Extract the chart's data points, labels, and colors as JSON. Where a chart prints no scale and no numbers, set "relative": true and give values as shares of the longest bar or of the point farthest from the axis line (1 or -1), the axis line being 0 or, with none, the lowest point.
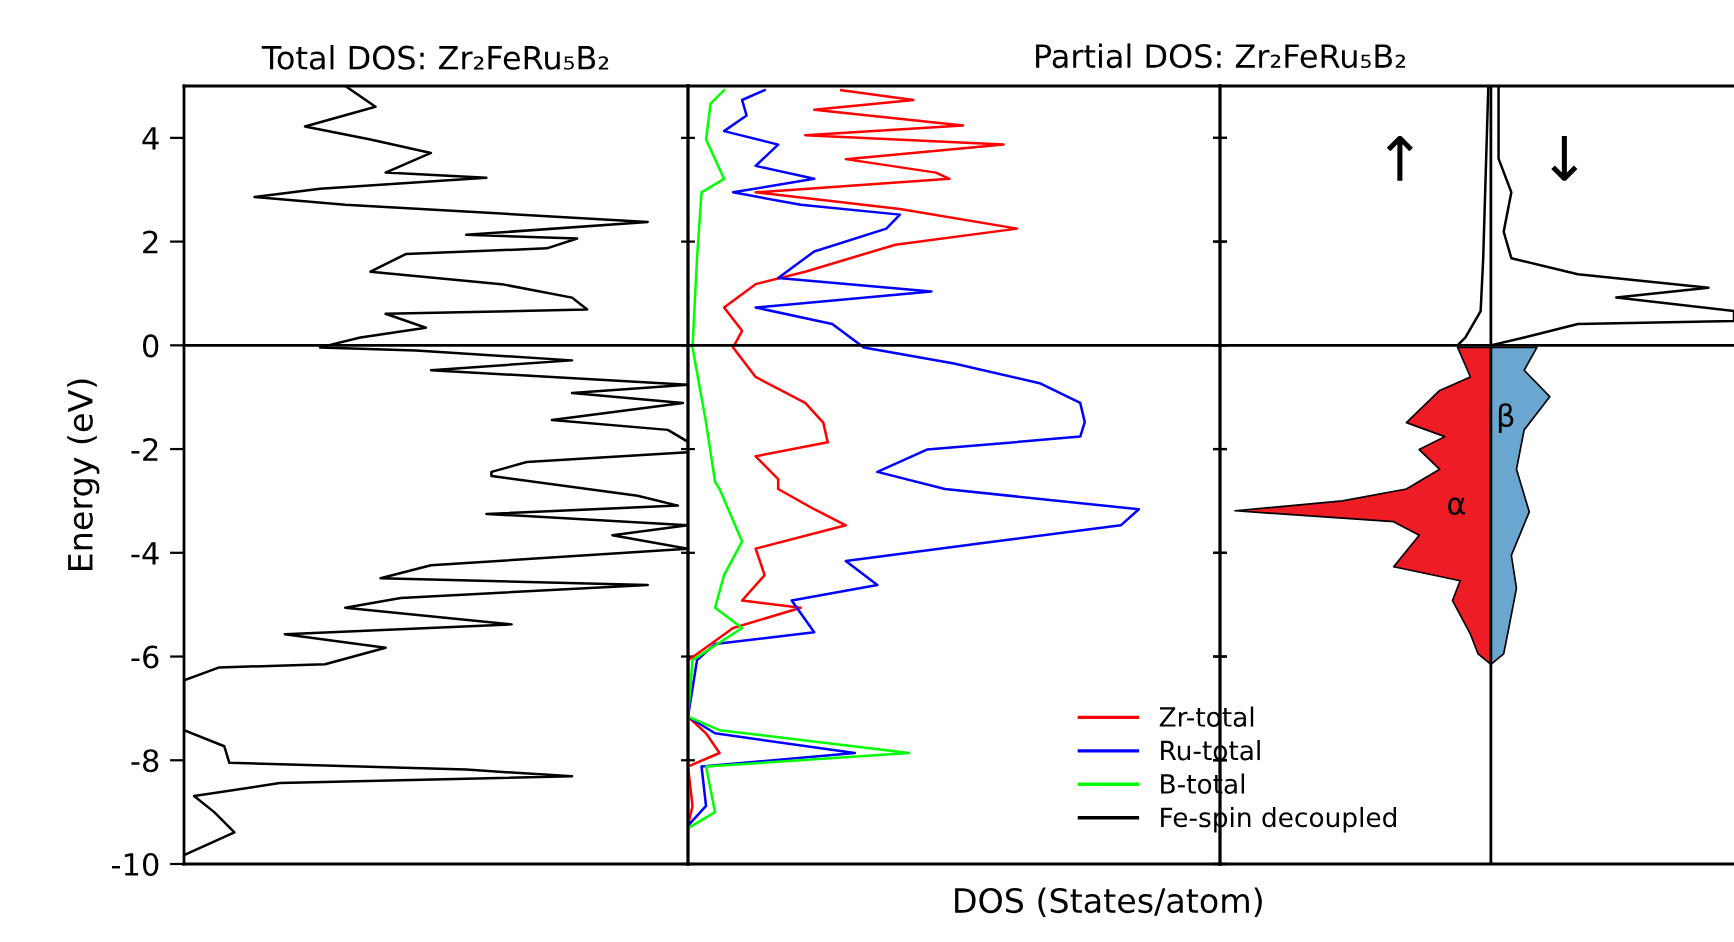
{
  "chart_data": [
    {
      "type": "line",
      "title": "Total DOS: Zr₂FeRu₅B₂",
      "ylabel": "Energy (eV)",
      "orientation": "horizontal",
      "relative": true,
      "ylim": [
        -10,
        5
      ],
      "yticks": [
        -10,
        -8,
        -6,
        -4,
        -2,
        0,
        2,
        4
      ],
      "tick_labels": "y",
      "grid": false,
      "legend": false,
      "ref_lines": [
        {
          "axis": "y",
          "value": 0,
          "color": "#000000"
        }
      ],
      "series": [
        {
          "color": "#000000",
          "x": [
            5.0,
            4.6,
            4.22,
            3.97,
            3.71,
            3.33,
            3.23,
            3.02,
            2.86,
            2.71,
            2.38,
            2.13,
            2.06,
            1.87,
            1.76,
            1.42,
            1.18,
            0.92,
            0.69,
            0.61,
            0.34,
            0.15,
            -0.04,
            -0.1,
            -0.29,
            -0.48,
            -0.76,
            -0.92,
            -1.11,
            -1.44,
            -1.63,
            -1.86,
            -2.06,
            -2.25,
            -2.44,
            -2.52,
            -2.9,
            -3.09,
            -3.25,
            -3.47,
            -3.66,
            -3.92,
            -4.24,
            -4.49,
            -4.62,
            -4.87,
            -5.06,
            -5.38,
            -5.57,
            -5.83,
            -6.15,
            -6.21,
            -6.46,
            -7.42,
            -7.73,
            -8.05,
            -8.18,
            -8.31,
            -8.44,
            -8.69,
            -9.0,
            -9.39,
            -9.83
          ],
          "values": [
            0.32,
            0.38,
            0.24,
            0.37,
            0.49,
            0.4,
            0.6,
            0.27,
            0.14,
            0.32,
            0.92,
            0.56,
            0.78,
            0.72,
            0.44,
            0.37,
            0.63,
            0.77,
            0.8,
            0.4,
            0.48,
            0.35,
            0.27,
            0.46,
            0.77,
            0.49,
            1.0,
            0.77,
            0.99,
            0.73,
            0.96,
            1.0,
            1.0,
            0.68,
            0.61,
            0.61,
            0.9,
            0.98,
            0.6,
            1.0,
            0.85,
            1.0,
            0.49,
            0.39,
            0.92,
            0.43,
            0.32,
            0.65,
            0.2,
            0.4,
            0.28,
            0.07,
            0,
            0,
            0.08,
            0.09,
            0.56,
            0.77,
            0.19,
            0.02,
            0.06,
            0.1,
            0
          ]
        }
      ]
    },
    {
      "type": "line",
      "title": "Partial DOS: Zr₂FeRu₅B₂",
      "xlabel": "DOS (States/atom)",
      "orientation": "horizontal",
      "relative": true,
      "ylim": [
        -10,
        5
      ],
      "yticks": [
        -10,
        -8,
        -6,
        -4,
        -2,
        0,
        2,
        4
      ],
      "tick_labels": false,
      "grid": false,
      "legend": "bottom right",
      "ref_lines": [
        {
          "axis": "y",
          "value": 0,
          "color": "#000000"
        }
      ],
      "series": [
        {
          "name": "Zr-total",
          "color": "#ff0000",
          "x": [
            4.92,
            4.73,
            4.54,
            4.24,
            4.05,
            3.87,
            3.59,
            3.33,
            3.21,
            2.95,
            2.63,
            2.25,
            1.94,
            1.42,
            1.18,
            0.73,
            0.28,
            -0.04,
            -0.61,
            -1.11,
            -1.49,
            -1.87,
            -2.14,
            -2.58,
            -2.77,
            -3.16,
            -3.47,
            -3.92,
            -4.43,
            -4.92,
            -5.06,
            -5.45,
            -5.95,
            -6.07,
            -7.16,
            -7.48,
            -7.86,
            -8.12,
            -8.88,
            -9.26
          ],
          "values": [
            0.34,
            0.5,
            0.28,
            0.61,
            0.26,
            0.7,
            0.35,
            0.55,
            0.58,
            0.15,
            0.47,
            0.73,
            0.46,
            0.26,
            0.15,
            0.08,
            0.12,
            0.1,
            0.15,
            0.26,
            0.3,
            0.31,
            0.15,
            0.2,
            0.2,
            0.28,
            0.35,
            0.15,
            0.17,
            0.12,
            0.25,
            0.1,
            0.02,
            0,
            0,
            0.04,
            0.07,
            0,
            0.01,
            0
          ]
        },
        {
          "name": "Ru-total",
          "color": "#0000ff",
          "x": [
            4.92,
            4.73,
            4.43,
            4.13,
            3.87,
            3.46,
            3.21,
            2.95,
            2.71,
            2.52,
            2.25,
            1.81,
            1.3,
            1.04,
            0.73,
            0.41,
            -0.04,
            -0.35,
            -0.73,
            -1.11,
            -1.48,
            -1.76,
            -2.01,
            -2.44,
            -2.77,
            -3.16,
            -3.47,
            -3.78,
            -4.16,
            -4.62,
            -4.92,
            -5.53,
            -5.76,
            -6.07,
            -7.16,
            -7.48,
            -7.86,
            -8.12,
            -8.88,
            -9.26
          ],
          "values": [
            0.17,
            0.12,
            0.13,
            0.08,
            0.2,
            0.15,
            0.28,
            0.1,
            0.25,
            0.47,
            0.44,
            0.28,
            0.2,
            0.54,
            0.15,
            0.32,
            0.39,
            0.59,
            0.78,
            0.87,
            0.88,
            0.87,
            0.53,
            0.42,
            0.57,
            1.0,
            0.96,
            0.68,
            0.35,
            0.42,
            0.23,
            0.28,
            0.06,
            0.02,
            0,
            0.06,
            0.37,
            0.03,
            0.04,
            0
          ]
        },
        {
          "name": "B-total",
          "color": "#00ff00",
          "x": [
            4.92,
            4.66,
            3.97,
            3.21,
            2.95,
            1.68,
            -0.04,
            -1.49,
            -2.63,
            -2.77,
            -3.78,
            -4.43,
            -5.06,
            -5.45,
            -6.07,
            -7.16,
            -7.42,
            -7.86,
            -8.12,
            -9.0,
            -9.31
          ],
          "values": [
            0.08,
            0.05,
            0.04,
            0.08,
            0.03,
            0.02,
            0.01,
            0.04,
            0.06,
            0.07,
            0.12,
            0.08,
            0.06,
            0.12,
            0.01,
            0,
            0.07,
            0.49,
            0.04,
            0.06,
            0
          ]
        }
      ]
    },
    {
      "type": "line",
      "orientation": "horizontal",
      "relative": true,
      "ylim": [
        -10,
        5
      ],
      "yticks": [
        -10,
        -8,
        -6,
        -4,
        -2,
        0,
        2,
        4
      ],
      "tick_labels": false,
      "grid": false,
      "ref_lines": [
        {
          "axis": "y",
          "value": 0,
          "color": "#000000"
        }
      ],
      "annotations": [
        "↑",
        "↓",
        "α",
        "β"
      ],
      "series": [
        {
          "type": "area",
          "color": "#ee1c24",
          "x": [
            -0.04,
            -0.61,
            -0.87,
            -1.49,
            -1.76,
            -2.01,
            -2.39,
            -2.77,
            -3.0,
            -3.19,
            -3.4,
            -3.66,
            -4.27,
            -4.54,
            -4.92,
            -5.57,
            -5.95,
            -6.15
          ],
          "values": [
            -0.13,
            -0.08,
            -0.2,
            -0.33,
            -0.18,
            -0.28,
            -0.2,
            -0.33,
            -0.58,
            -1.0,
            -0.38,
            -0.28,
            -0.38,
            -0.12,
            -0.15,
            -0.08,
            -0.05,
            0
          ]
        },
        {
          "type": "area",
          "color": "#6aa6cf",
          "x": [
            -0.04,
            -0.48,
            -0.99,
            -1.63,
            -2.39,
            -3.21,
            -4.05,
            -4.68,
            -5.45,
            -5.95,
            -6.15
          ],
          "values": [
            0.18,
            0.13,
            0.23,
            0.13,
            0.1,
            0.15,
            0.08,
            0.1,
            0.07,
            0.05,
            0
          ]
        },
        {
          "name": "Fe-spin decoupled",
          "color": "#000000",
          "x": [
            5.0,
            1.68,
            0.66,
            0.15,
            0
          ],
          "values": [
            -0.01,
            -0.03,
            -0.04,
            -0.1,
            -0.13
          ]
        },
        {
          "color": "#000000",
          "x": [
            5.0,
            3.6,
            2.95,
            2.19,
            1.68,
            1.37,
            1.11,
            0.92,
            0.66,
            0.47,
            0.41,
            0.15,
            0
          ],
          "values": [
            0.03,
            0.03,
            0.08,
            0.05,
            0.08,
            0.34,
            0.85,
            0.49,
            0.95,
            0.95,
            0.34,
            0.13,
            0
          ]
        }
      ]
    }
  ]
}
